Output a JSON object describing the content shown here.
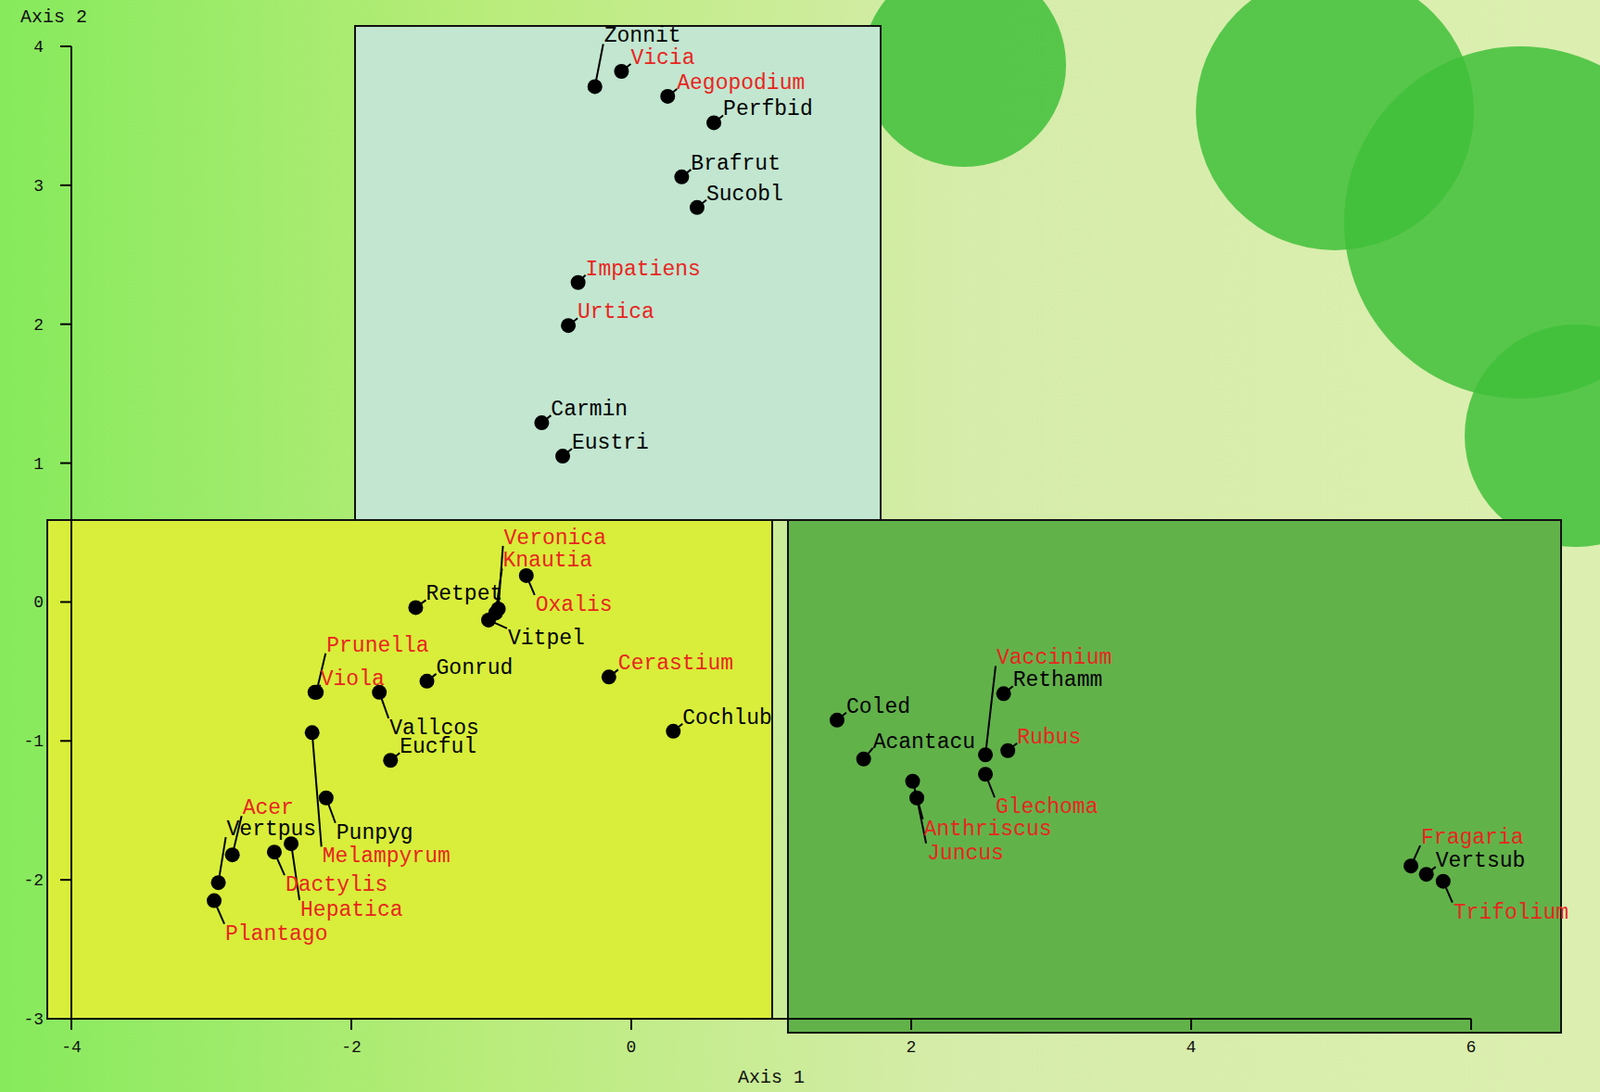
{
  "chart_data": {
    "type": "scatter",
    "x_label": "Axis 1",
    "y_label": "Axis 2",
    "xlim": [
      -4,
      6
    ],
    "ylim": [
      -3,
      4
    ],
    "xticks": [
      -4,
      -2,
      0,
      2,
      4,
      6
    ],
    "yticks": [
      -3,
      -2,
      -1,
      0,
      1,
      2,
      3,
      4
    ],
    "series": [
      {
        "color": "#000000",
        "marker": "circle",
        "labels": [
          "Zonnit",
          "Perfbid",
          "Brafrut",
          "Sucobl",
          "Carmin",
          "Eustri",
          "Retpet",
          "Vitpel",
          "Gonrud",
          "Vallcos",
          "Eucful",
          "Cochlub",
          "Punpyg",
          "Vertpus",
          "Coled",
          "Acantacu",
          "Rethamm",
          "Vertsub"
        ],
        "x": [
          -0.26,
          0.59,
          0.36,
          0.47,
          -0.64,
          -0.49,
          -1.54,
          -1.02,
          -1.46,
          -1.8,
          -1.72,
          0.3,
          -2.18,
          -2.95,
          1.47,
          1.66,
          2.66,
          5.68
        ],
        "values": [
          3.71,
          3.45,
          3.06,
          2.84,
          1.29,
          1.05,
          -0.04,
          -0.13,
          -0.57,
          -0.65,
          -1.14,
          -0.93,
          -1.41,
          -2.02,
          -0.85,
          -1.13,
          -0.66,
          -1.96
        ]
      },
      {
        "color": "#e8251f",
        "marker": "circle",
        "labels": [
          "Vicia",
          "Aegopodium",
          "Impatiens",
          "Urtica",
          "Veronica",
          "Knautia",
          "Oxalis",
          "Prunella",
          "Viola",
          "Cerastium",
          "Melampyrum",
          "Acer",
          "Dactylis",
          "Hepatica",
          "Plantago",
          "Vaccinium",
          "Glechoma",
          "Anthriscus",
          "Juncus",
          "Rubus",
          "Fragaria",
          "Trifolium"
        ],
        "x": [
          -0.07,
          0.26,
          -0.38,
          -0.45,
          -0.95,
          -0.97,
          -0.75,
          -2.25,
          -2.26,
          -0.16,
          -2.28,
          -2.85,
          -2.55,
          -2.43,
          -2.98,
          2.53,
          2.53,
          2.01,
          2.04,
          2.69,
          5.57,
          5.8
        ],
        "values": [
          3.82,
          3.64,
          2.3,
          1.99,
          -0.05,
          -0.08,
          0.19,
          -0.65,
          -0.65,
          -0.54,
          -0.94,
          -1.82,
          -1.8,
          -1.74,
          -2.15,
          -1.1,
          -1.24,
          -1.29,
          -1.41,
          -1.07,
          -1.9,
          -2.01
        ]
      }
    ]
  }
}
